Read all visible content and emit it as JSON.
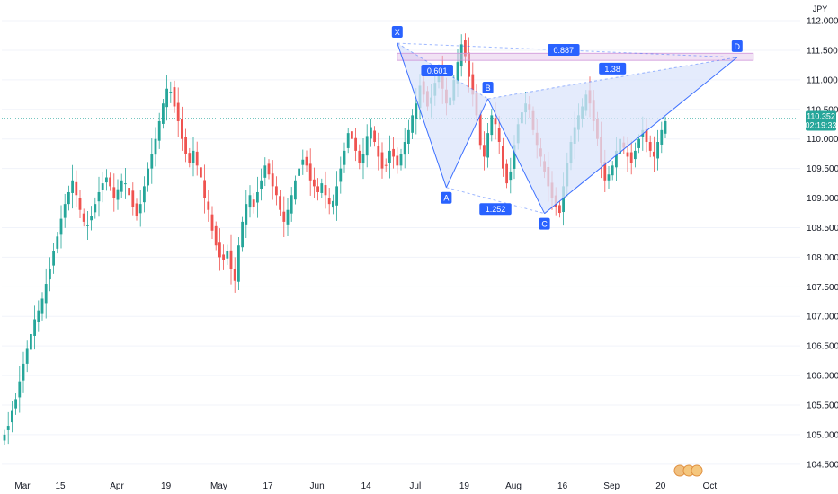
{
  "chart_data": {
    "type": "candlestick",
    "currency": "JPY",
    "price_label": "110.352",
    "countdown": "02:19:33",
    "last_price": 110.352,
    "ylim": [
      104.3,
      112.35
    ],
    "y_ticks": [
      "112.000",
      "111.500",
      "111.000",
      "110.500",
      "110.000",
      "109.500",
      "109.000",
      "108.500",
      "108.000",
      "107.500",
      "107.000",
      "106.500",
      "106.000",
      "105.500",
      "105.000",
      "104.500"
    ],
    "y_tick_values": [
      112.0,
      111.5,
      111.0,
      110.5,
      110.0,
      109.5,
      109.0,
      108.5,
      108.0,
      107.5,
      107.0,
      106.5,
      106.0,
      105.5,
      105.0,
      104.5
    ],
    "x_ticks": [
      "Mar",
      "15",
      "Apr",
      "19",
      "May",
      "17",
      "Jun",
      "14",
      "Jul",
      "19",
      "Aug",
      "16",
      "Sep",
      "20",
      "Oct"
    ],
    "x_tick_index": [
      0,
      10,
      25,
      38,
      52,
      65,
      78,
      91,
      104,
      117,
      130,
      143,
      156,
      169,
      182
    ],
    "bars_count": 176,
    "candles_close": [
      105.0,
      105.15,
      105.4,
      105.6,
      105.9,
      106.2,
      106.45,
      106.7,
      106.95,
      107.1,
      107.3,
      107.55,
      107.8,
      108.1,
      108.35,
      108.65,
      108.9,
      109.1,
      109.3,
      109.05,
      108.8,
      108.6,
      108.55,
      108.7,
      108.9,
      109.1,
      109.25,
      109.35,
      109.2,
      109.0,
      109.15,
      109.3,
      109.25,
      109.05,
      108.85,
      108.7,
      108.9,
      109.2,
      109.5,
      109.75,
      110.0,
      110.3,
      110.6,
      110.85,
      110.8,
      110.55,
      110.3,
      110.0,
      109.75,
      109.6,
      109.8,
      109.55,
      109.35,
      109.0,
      108.8,
      108.45,
      108.2,
      108.0,
      107.95,
      108.1,
      107.8,
      107.6,
      108.2,
      108.6,
      108.9,
      109.05,
      108.85,
      109.1,
      109.3,
      109.55,
      109.4,
      109.2,
      109.05,
      108.8,
      108.6,
      108.8,
      109.05,
      109.3,
      109.5,
      109.65,
      109.55,
      109.3,
      109.2,
      109.1,
      109.25,
      109.05,
      108.9,
      108.95,
      109.2,
      109.5,
      109.8,
      110.1,
      110.0,
      109.8,
      109.6,
      109.75,
      110.05,
      110.2,
      109.95,
      109.7,
      109.5,
      109.55,
      109.8,
      109.7,
      109.55,
      109.75,
      109.95,
      110.15,
      110.4,
      110.6,
      110.9,
      110.75,
      110.55,
      110.7,
      110.95,
      111.15,
      110.85,
      110.6,
      110.7,
      111.0,
      111.3,
      111.6,
      111.4,
      111.05,
      110.75,
      110.4,
      109.9,
      109.7,
      110.1,
      110.4,
      110.25,
      109.95,
      109.5,
      109.25,
      109.45,
      109.9,
      110.25,
      110.45,
      110.6,
      110.5,
      110.15,
      109.9,
      109.7,
      109.45,
      109.2,
      109.0,
      108.85,
      108.75,
      109.2,
      109.6,
      109.95,
      110.2,
      110.4,
      110.55,
      110.75,
      110.6,
      110.3,
      110.0,
      109.6,
      109.3,
      109.4,
      109.55,
      109.8,
      110.0,
      109.85,
      109.7,
      109.6,
      109.8,
      110.0,
      110.15,
      109.95,
      109.8,
      109.7,
      109.95,
      110.15,
      110.3
    ],
    "pattern": {
      "points": [
        {
          "name": "X",
          "x": 104,
          "y": 111.62
        },
        {
          "name": "A",
          "x": 117,
          "y": 109.18
        },
        {
          "name": "B",
          "x": 128,
          "y": 110.68
        },
        {
          "name": "C",
          "x": 143,
          "y": 108.74
        },
        {
          "name": "D",
          "x": 194,
          "y": 111.38
        }
      ],
      "ratios": [
        {
          "label": "0.601",
          "at": "XB"
        },
        {
          "label": "1.252",
          "at": "AC"
        },
        {
          "label": "1.38",
          "at": "BD"
        },
        {
          "label": "0.887",
          "at": "XD"
        }
      ],
      "zone": [
        111.33,
        111.45
      ]
    },
    "up_color": "#26a69a",
    "down_color": "#ef5350",
    "pattern_color": "#2962ff",
    "fill_color": "#dbe4fb",
    "zone_color": "#e1bee7"
  }
}
